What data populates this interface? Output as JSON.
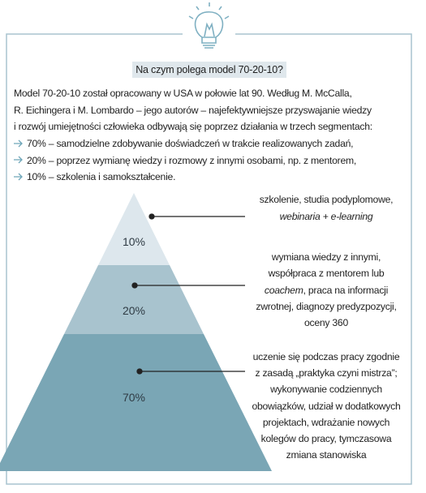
{
  "title": "Na czym polega model 70-20-10?",
  "intro_lines": [
    "Model 70-20-10 został opracowany w USA w połowie lat 90. Według M. McCalla,",
    "R. Eichingera i M. Lombardo – jego autorów – najefektywniejsze przyswajanie wiedzy",
    "i rozwój umiejętności człowieka odbywają się poprzez działania w trzech segmentach:"
  ],
  "bullets": [
    "70% – samodzielne zdobywanie doświadczeń w trakcie realizowanych zadań,",
    "20% – poprzez wymianę wiedzy i rozmowy z innymi osobami, np. z mentorem,",
    "10% – szkolenia i samokształcenie."
  ],
  "levels": [
    {
      "percent": "10%",
      "lines": [
        [
          {
            "text": "szkolenie, studia podyplomowe,"
          }
        ],
        [
          {
            "text": "webinaria + e-learning",
            "italic": true
          }
        ]
      ]
    },
    {
      "percent": "20%",
      "lines": [
        [
          {
            "text": "wymiana wiedzy z innymi,"
          }
        ],
        [
          {
            "text": "współpraca z mentorem lub"
          }
        ],
        [
          {
            "text": "coachem",
            "italic": true
          },
          {
            "text": ", praca na informacji"
          }
        ],
        [
          {
            "text": "zwrotnej, diagnozy predyzpozycji,"
          }
        ],
        [
          {
            "text": "oceny 360"
          }
        ]
      ]
    },
    {
      "percent": "70%",
      "lines": [
        [
          {
            "text": "uczenie się podczas pracy zgodnie"
          }
        ],
        [
          {
            "text": "z zasadą „praktyka czyni mistrza”;"
          }
        ],
        [
          {
            "text": "wykonywanie codziennych"
          }
        ],
        [
          {
            "text": "obowiązków, udział w dodatkowych"
          }
        ],
        [
          {
            "text": "projektach, wdrażanie nowych"
          }
        ],
        [
          {
            "text": "kolegów do pracy, tymczasowa"
          }
        ],
        [
          {
            "text": "zmiana stanowiska"
          }
        ]
      ]
    }
  ]
}
